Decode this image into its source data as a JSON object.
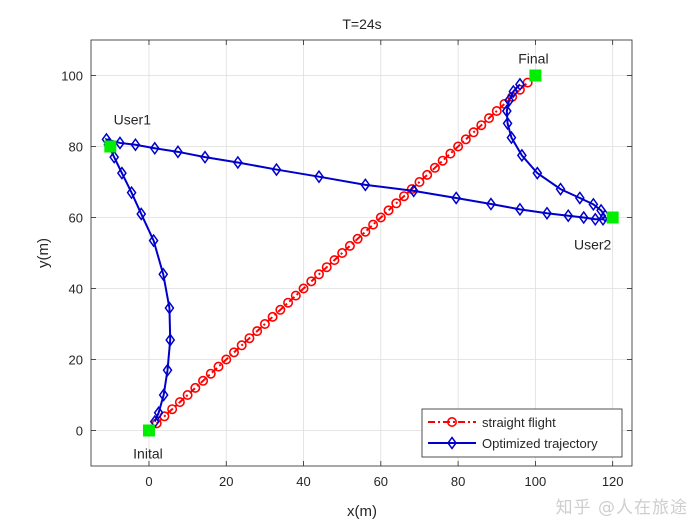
{
  "chart_data": {
    "type": "line",
    "title": "T=24s",
    "xlabel": "x(m)",
    "ylabel": "y(m)",
    "xlim": [
      -15,
      125
    ],
    "ylim": [
      -10,
      110
    ],
    "xticks": [
      0,
      20,
      40,
      60,
      80,
      100,
      120
    ],
    "yticks": [
      0,
      20,
      40,
      60,
      80,
      100
    ],
    "grid": true,
    "legend_position": "bottom-right",
    "series": [
      {
        "name": "straight flight",
        "color": "#ff0000",
        "line_style": "dash-dot",
        "marker": "circle",
        "points": [
          [
            2,
            2
          ],
          [
            4,
            4
          ],
          [
            6,
            6
          ],
          [
            8,
            8
          ],
          [
            10,
            10
          ],
          [
            12,
            12
          ],
          [
            14,
            14
          ],
          [
            16,
            16
          ],
          [
            18,
            18
          ],
          [
            20,
            20
          ],
          [
            22,
            22
          ],
          [
            24,
            24
          ],
          [
            26,
            26
          ],
          [
            28,
            28
          ],
          [
            30,
            30
          ],
          [
            32,
            32
          ],
          [
            34,
            34
          ],
          [
            36,
            36
          ],
          [
            38,
            38
          ],
          [
            40,
            40
          ],
          [
            42,
            42
          ],
          [
            44,
            44
          ],
          [
            46,
            46
          ],
          [
            48,
            48
          ],
          [
            50,
            50
          ],
          [
            52,
            52
          ],
          [
            54,
            54
          ],
          [
            56,
            56
          ],
          [
            58,
            58
          ],
          [
            60,
            60
          ],
          [
            62,
            62
          ],
          [
            64,
            64
          ],
          [
            66,
            66
          ],
          [
            68,
            68
          ],
          [
            70,
            70
          ],
          [
            72,
            72
          ],
          [
            74,
            74
          ],
          [
            76,
            76
          ],
          [
            78,
            78
          ],
          [
            80,
            80
          ],
          [
            82,
            82
          ],
          [
            84,
            84
          ],
          [
            86,
            86
          ],
          [
            88,
            88
          ],
          [
            90,
            90
          ],
          [
            92,
            92
          ],
          [
            94,
            94
          ],
          [
            96,
            96
          ],
          [
            98,
            98
          ]
        ]
      },
      {
        "name": "Optimized trajectory",
        "color": "#0000cc",
        "line_style": "solid",
        "marker": "diamond",
        "points": [
          [
            1.5,
            2.5
          ],
          [
            2.5,
            5
          ],
          [
            3.8,
            10
          ],
          [
            4.8,
            17
          ],
          [
            5.5,
            25.5
          ],
          [
            5.3,
            34.5
          ],
          [
            3.7,
            44
          ],
          [
            1.2,
            53.5
          ],
          [
            -2,
            61
          ],
          [
            -4.5,
            67
          ],
          [
            -7,
            72.5
          ],
          [
            -9,
            77
          ],
          [
            -10.5,
            80.5
          ],
          [
            -11,
            82
          ],
          [
            -7.5,
            81
          ],
          [
            -3.5,
            80.5
          ],
          [
            1.5,
            79.5
          ],
          [
            7.5,
            78.5
          ],
          [
            14.5,
            77
          ],
          [
            23,
            75.5
          ],
          [
            33,
            73.5
          ],
          [
            44,
            71.5
          ],
          [
            56,
            69.2
          ],
          [
            68.5,
            67.5
          ],
          [
            79.5,
            65.5
          ],
          [
            88.5,
            63.8
          ],
          [
            96,
            62.3
          ],
          [
            103,
            61.2
          ],
          [
            108.5,
            60.5
          ],
          [
            112.5,
            60
          ],
          [
            115.5,
            59.5
          ],
          [
            117.5,
            59.5
          ],
          [
            118,
            60.5
          ],
          [
            117,
            62
          ],
          [
            115,
            63.7
          ],
          [
            111.5,
            65.5
          ],
          [
            106.5,
            68
          ],
          [
            100.5,
            72.5
          ],
          [
            96.5,
            77.5
          ],
          [
            93.8,
            82.5
          ],
          [
            92.8,
            86.5
          ],
          [
            92.6,
            90
          ],
          [
            93.2,
            93
          ],
          [
            94.3,
            95.5
          ],
          [
            96,
            97.5
          ]
        ]
      }
    ],
    "annotations": [
      {
        "text": "Final",
        "x": 100,
        "y": 100
      },
      {
        "text": "User1",
        "x": -10,
        "y": 80
      },
      {
        "text": "User2",
        "x": 120,
        "y": 60
      },
      {
        "text": "Inital",
        "x": 0,
        "y": 0
      }
    ],
    "key_points": {
      "color": "#00ee00",
      "points": [
        [
          0,
          0
        ],
        [
          -10,
          80
        ],
        [
          120,
          60
        ],
        [
          100,
          100
        ]
      ]
    }
  },
  "watermark": "知乎 @人在旅途"
}
